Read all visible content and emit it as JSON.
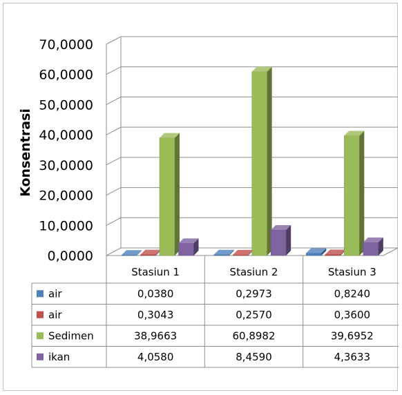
{
  "chart_data": {
    "type": "bar",
    "ylabel": "Konsentrasi",
    "ylim": [
      0,
      70
    ],
    "y_ticks": [
      "0,0000",
      "10,0000",
      "20,0000",
      "30,0000",
      "40,0000",
      "50,0000",
      "60,0000",
      "70,0000"
    ],
    "categories": [
      "Stasiun 1",
      "Stasiun 2",
      "Stasiun 3"
    ],
    "series": [
      {
        "name": "air",
        "color": "#4f81bd",
        "values": [
          0.038,
          0.2973,
          0.824
        ],
        "labels": [
          "0,0380",
          "0,2973",
          "0,8240"
        ]
      },
      {
        "name": "air",
        "color": "#c0504d",
        "values": [
          0.3043,
          0.257,
          0.36
        ],
        "labels": [
          "0,3043",
          "0,2570",
          "0,3600"
        ]
      },
      {
        "name": "Sedimen",
        "color": "#9bbb59",
        "values": [
          38.9663,
          60.8982,
          39.6952
        ],
        "labels": [
          "38,9663",
          "60,8982",
          "39,6952"
        ]
      },
      {
        "name": "ikan",
        "color": "#8064a2",
        "values": [
          4.058,
          8.459,
          4.3633
        ],
        "labels": [
          "4,0580",
          "8,4590",
          "4,3633"
        ]
      }
    ],
    "grid": true,
    "legend": "data-table",
    "style": "3d-clustered-column"
  }
}
